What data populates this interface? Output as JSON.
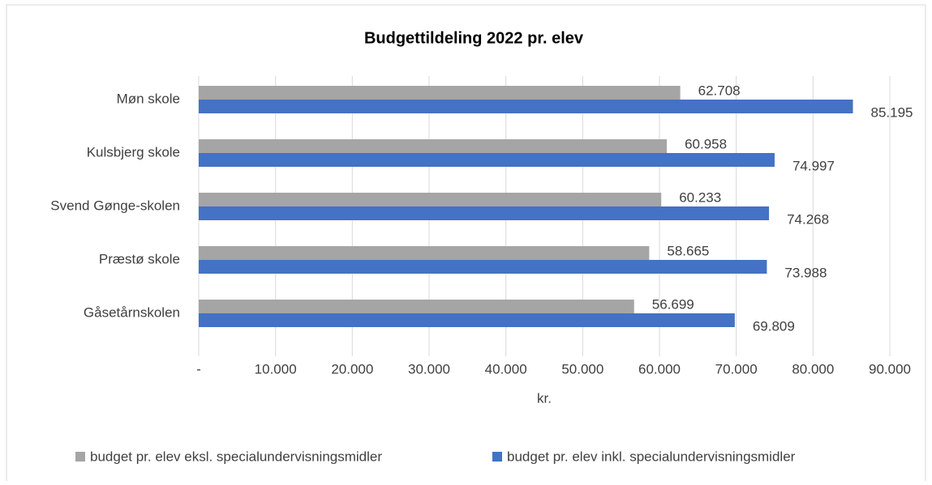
{
  "chart_data": {
    "type": "hbar",
    "title": "Budgettildeling 2022 pr. elev",
    "x_label": "kr.",
    "categories": [
      "Møn skole",
      "Kulsbjerg skole",
      "Svend Gønge-skolen",
      "Præstø skole",
      "Gåsetårnskolen"
    ],
    "series": [
      {
        "name": "budget pr. elev eksl. specialundervisningsmidler",
        "color": "#a5a5a5",
        "values": [
          62708,
          60958,
          60233,
          58665,
          56699
        ],
        "value_labels": [
          "62.708",
          "60.958",
          "60.233",
          "58.665",
          "56.699"
        ]
      },
      {
        "name": "budget pr. elev inkl. specialundervisningsmidler",
        "color": "#4472c4",
        "values": [
          85195,
          74997,
          74268,
          73988,
          69809
        ],
        "value_labels": [
          "85.195",
          "74.997",
          "74.268",
          "73.988",
          "69.809"
        ]
      }
    ],
    "xlim": [
      0,
      90000
    ],
    "xticks": [
      {
        "value": 0,
        "label": "-"
      },
      {
        "value": 10000,
        "label": "10.000"
      },
      {
        "value": 20000,
        "label": "20.000"
      },
      {
        "value": 30000,
        "label": "30.000"
      },
      {
        "value": 40000,
        "label": "40.000"
      },
      {
        "value": 50000,
        "label": "50.000"
      },
      {
        "value": 60000,
        "label": "60.000"
      },
      {
        "value": 70000,
        "label": "70.000"
      },
      {
        "value": 80000,
        "label": "80.000"
      },
      {
        "value": 90000,
        "label": "90.000"
      }
    ],
    "grid": true,
    "legend": "bottom"
  }
}
